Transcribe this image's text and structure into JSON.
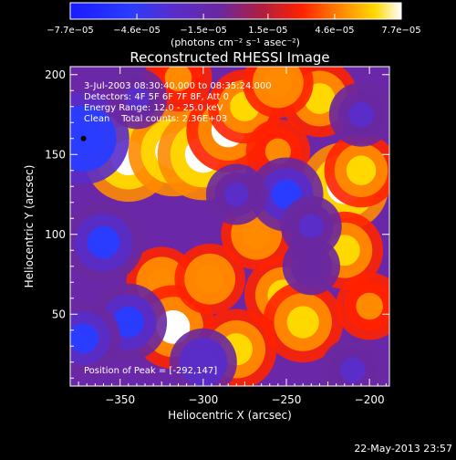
{
  "chart_data": {
    "type": "heatmap",
    "title": "Reconstructed RHESSI Image",
    "xlabel": "Heliocentric X (arcsec)",
    "ylabel": "Heliocentric Y (arcsec)",
    "xlim": [
      -380,
      -188
    ],
    "ylim": [
      5,
      205
    ],
    "x_ticks": [
      -350,
      -300,
      -250,
      -200
    ],
    "x_tick_labels": [
      "−350",
      "−300",
      "−250",
      "−200"
    ],
    "y_ticks": [
      50,
      100,
      150,
      200
    ],
    "y_tick_labels": [
      "50",
      "100",
      "150",
      "200"
    ],
    "colorbar": {
      "ticks": [
        -7.7e-05,
        -4.6e-05,
        -1.5e-05,
        1.5e-05,
        4.6e-05,
        7.7e-05
      ],
      "tick_labels": [
        "−7.7e−05",
        "−4.6e−05",
        "−1.5e−05",
        "1.5e−05",
        "4.6e−05",
        "7.7e−05"
      ],
      "range": [
        -7.7e-05,
        7.7e-05
      ],
      "units_label": "(photons cm⁻² s⁻¹ asec⁻²)"
    },
    "annotations": [
      "3-Jul-2003 08:30:40.000 to 08:35:24.000",
      "Detectors: 4F 5F 6F 7F 8F, Att 0",
      "Energy Range: 12.0 - 25.0 keV",
      "Clean    Total counts: 2.36E+03"
    ],
    "peak_label": "Position of Peak = [-292,147]",
    "grid": false,
    "blobs": [
      {
        "x": -345,
        "y": 148,
        "v": 7.2e-05
      },
      {
        "x": -318,
        "y": 152,
        "v": 7.5e-05
      },
      {
        "x": -300,
        "y": 150,
        "v": 7.7e-05
      },
      {
        "x": -285,
        "y": 165,
        "v": 6.5e-05
      },
      {
        "x": -275,
        "y": 180,
        "v": 5e-05
      },
      {
        "x": -255,
        "y": 152,
        "v": 3.5e-05
      },
      {
        "x": -215,
        "y": 130,
        "v": 7.2e-05
      },
      {
        "x": -205,
        "y": 140,
        "v": 5e-05
      },
      {
        "x": -215,
        "y": 90,
        "v": 5.5e-05
      },
      {
        "x": -268,
        "y": 100,
        "v": 4.5e-05
      },
      {
        "x": -252,
        "y": 62,
        "v": 5.5e-05
      },
      {
        "x": -240,
        "y": 45,
        "v": 6e-05
      },
      {
        "x": -200,
        "y": 55,
        "v": 4e-05
      },
      {
        "x": -325,
        "y": 70,
        "v": 4.5e-05
      },
      {
        "x": -318,
        "y": 42,
        "v": 6.5e-05
      },
      {
        "x": -296,
        "y": 72,
        "v": 4.5e-05
      },
      {
        "x": -280,
        "y": 28,
        "v": 6e-05
      },
      {
        "x": -230,
        "y": 185,
        "v": 5.5e-05
      },
      {
        "x": -255,
        "y": 195,
        "v": 4.5e-05
      },
      {
        "x": -315,
        "y": 198,
        "v": 4e-05
      },
      {
        "x": -372,
        "y": 160,
        "v": -7.7e-05
      },
      {
        "x": -360,
        "y": 95,
        "v": -6e-05
      },
      {
        "x": -345,
        "y": 45,
        "v": -5.5e-05
      },
      {
        "x": -372,
        "y": 35,
        "v": -5e-05
      },
      {
        "x": -250,
        "y": 125,
        "v": -5e-05
      },
      {
        "x": -235,
        "y": 105,
        "v": -3e-05
      },
      {
        "x": -205,
        "y": 175,
        "v": -3.5e-05
      },
      {
        "x": -280,
        "y": 125,
        "v": -3e-05
      },
      {
        "x": -300,
        "y": 20,
        "v": -4e-05
      },
      {
        "x": -210,
        "y": 15,
        "v": -3.5e-05
      },
      {
        "x": -340,
        "y": 185,
        "v": -3e-05
      },
      {
        "x": -235,
        "y": 80,
        "v": -2.5e-05
      }
    ]
  },
  "footer": {
    "timestamp": "22-May-2013 23:57"
  }
}
